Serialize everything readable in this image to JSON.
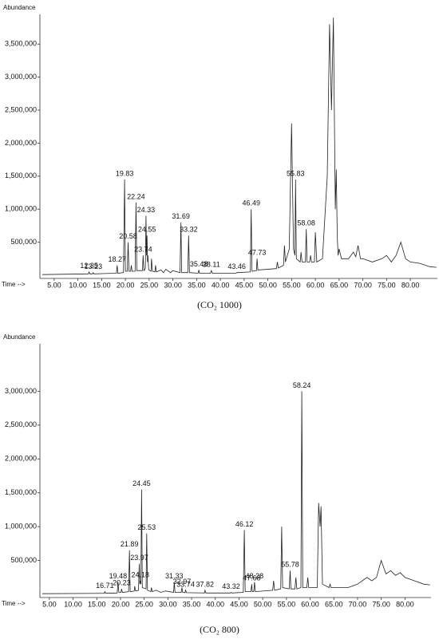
{
  "chart_data": [
    {
      "type": "line",
      "y_label": "Abundance",
      "x_label": "Time -->",
      "caption": "(CO₂ 1000)",
      "color": "#222222",
      "xlim": [
        2,
        85.7
      ],
      "ylim": [
        0,
        3950000
      ],
      "xticks": [
        {
          "value": 5,
          "label": "5.00"
        },
        {
          "value": 10,
          "label": "10.00"
        },
        {
          "value": 15,
          "label": "15.00"
        },
        {
          "value": 20,
          "label": "20.00"
        },
        {
          "value": 25,
          "label": "25.00"
        },
        {
          "value": 30,
          "label": "30.00"
        },
        {
          "value": 35,
          "label": "35.00"
        },
        {
          "value": 40,
          "label": "40.00"
        },
        {
          "value": 45,
          "label": "45.00"
        },
        {
          "value": 50,
          "label": "50.00"
        },
        {
          "value": 55,
          "label": "55.00"
        },
        {
          "value": 60,
          "label": "60.00"
        },
        {
          "value": 65,
          "label": "65.00"
        },
        {
          "value": 70,
          "label": "70.00"
        },
        {
          "value": 75,
          "label": "75.00"
        },
        {
          "value": 80,
          "label": "80.00"
        }
      ],
      "yticks": [
        {
          "value": 500000,
          "label": "500,000"
        },
        {
          "value": 1000000,
          "label": "1,000,000"
        },
        {
          "value": 1500000,
          "label": "1,500,000"
        },
        {
          "value": 2000000,
          "label": "2,000,000"
        },
        {
          "value": 2500000,
          "label": "2,500,000"
        },
        {
          "value": 3000000,
          "label": "3,000,000"
        },
        {
          "value": 3500000,
          "label": "3,500,000"
        }
      ],
      "x": [
        2.5,
        12.2,
        12.35,
        12.5,
        13.1,
        13.23,
        13.4,
        18.1,
        18.27,
        18.4,
        19.6,
        19.83,
        20.0,
        20.4,
        20.58,
        20.75,
        21.1,
        21.25,
        21.4,
        22.05,
        22.24,
        22.4,
        23.6,
        23.74,
        23.9,
        24.2,
        24.33,
        24.45,
        24.55,
        24.65,
        24.74,
        24.9,
        25.4,
        25.5,
        25.7,
        26.2,
        26.35,
        26.5,
        27.5,
        28,
        28.5,
        29.5,
        30,
        31.5,
        31.69,
        31.85,
        33.15,
        33.32,
        33.5,
        35.3,
        35.48,
        35.6,
        37.9,
        38.11,
        38.3,
        43.3,
        43.46,
        43.6,
        46.3,
        46.49,
        46.65,
        47.6,
        47.73,
        47.9,
        51.8,
        52,
        52.2,
        53.3,
        53.5,
        53.7,
        54.5,
        55.0,
        55.4,
        55.7,
        55.83,
        56,
        56.8,
        57,
        57.2,
        57.9,
        58.08,
        58.25,
        58.8,
        59,
        59.2,
        59.8,
        60,
        60.3,
        61.5,
        62.5,
        63,
        63.4,
        63.8,
        64.2,
        64.4,
        64.6,
        64.8,
        65,
        65.5,
        67,
        68,
        68.5,
        69,
        69.5,
        70,
        72,
        74,
        75,
        76,
        77,
        78,
        79,
        80,
        82,
        84,
        85.5
      ],
      "values": [
        10000,
        20000,
        50000,
        20000,
        20000,
        40000,
        20000,
        30000,
        150000,
        30000,
        40000,
        1450000,
        60000,
        60000,
        500000,
        60000,
        60000,
        150000,
        60000,
        60000,
        1100000,
        70000,
        70000,
        300000,
        70000,
        100000,
        900000,
        300000,
        600000,
        200000,
        300000,
        80000,
        60000,
        250000,
        60000,
        50000,
        150000,
        50000,
        80000,
        40000,
        90000,
        40000,
        70000,
        40000,
        800000,
        40000,
        40000,
        600000,
        40000,
        30000,
        80000,
        30000,
        30000,
        70000,
        30000,
        30000,
        40000,
        40000,
        50000,
        1000000,
        60000,
        70000,
        250000,
        80000,
        100000,
        200000,
        110000,
        150000,
        450000,
        200000,
        400000,
        2300000,
        400000,
        300000,
        1450000,
        250000,
        200000,
        350000,
        200000,
        200000,
        700000,
        200000,
        200000,
        300000,
        200000,
        200000,
        650000,
        200000,
        250000,
        1500000,
        3800000,
        2500000,
        3900000,
        1000000,
        1600000,
        600000,
        300000,
        400000,
        250000,
        250000,
        350000,
        280000,
        450000,
        250000,
        250000,
        200000,
        250000,
        300000,
        200000,
        300000,
        500000,
        250000,
        200000,
        180000,
        130000,
        120000
      ],
      "peaks": {
        "x": [
          12.35,
          13.23,
          18.27,
          19.83,
          20.58,
          22.24,
          23.74,
          24.33,
          24.55,
          31.69,
          33.32,
          35.48,
          38.11,
          43.46,
          46.49,
          47.73,
          55.83,
          58.08
        ],
        "values": [
          50000,
          40000,
          150000,
          1450000,
          500000,
          1100000,
          300000,
          900000,
          600000,
          800000,
          600000,
          80000,
          70000,
          40000,
          1000000,
          250000,
          1450000,
          700000
        ]
      }
    },
    {
      "type": "line",
      "y_label": "Abundance",
      "x_label": "Time -->",
      "caption": "(CO₂ 800)",
      "color": "#222222",
      "xlim": [
        3,
        85.5
      ],
      "ylim": [
        0,
        3700000
      ],
      "xticks": [
        {
          "value": 5,
          "label": "5.00"
        },
        {
          "value": 10,
          "label": "10.00"
        },
        {
          "value": 15,
          "label": "15.00"
        },
        {
          "value": 20,
          "label": "20.00"
        },
        {
          "value": 25,
          "label": "25.00"
        },
        {
          "value": 30,
          "label": "30.00"
        },
        {
          "value": 35,
          "label": "35.00"
        },
        {
          "value": 40,
          "label": "40.00"
        },
        {
          "value": 45,
          "label": "45.00"
        },
        {
          "value": 50,
          "label": "50.00"
        },
        {
          "value": 55,
          "label": "55.00"
        },
        {
          "value": 60,
          "label": "60.00"
        },
        {
          "value": 65,
          "label": "65.00"
        },
        {
          "value": 70,
          "label": "70.00"
        },
        {
          "value": 75,
          "label": "75.00"
        },
        {
          "value": 80,
          "label": "80.00"
        }
      ],
      "yticks": [
        {
          "value": 500000,
          "label": "500,000"
        },
        {
          "value": 1000000,
          "label": "1,000,000"
        },
        {
          "value": 1500000,
          "label": "1,500,000"
        },
        {
          "value": 2000000,
          "label": "2,000,000"
        },
        {
          "value": 2500000,
          "label": "2,500,000"
        },
        {
          "value": 3000000,
          "label": "3,000,000"
        }
      ],
      "x": [
        3.5,
        16.55,
        16.71,
        16.85,
        19.3,
        19.48,
        19.65,
        20.1,
        20.23,
        20.4,
        21.7,
        21.89,
        22.05,
        22.9,
        23.0,
        23.2,
        23.8,
        23.97,
        24.08,
        24.18,
        24.3,
        24.45,
        24.6,
        25.4,
        25.53,
        25.7,
        26.4,
        26.5,
        26.7,
        27.5,
        28.5,
        29.5,
        31.2,
        31.33,
        31.5,
        32.8,
        32.97,
        33.1,
        33.6,
        33.74,
        33.9,
        37.7,
        37.82,
        38,
        43.2,
        43.32,
        43.5,
        45.9,
        46.12,
        46.3,
        47.5,
        47.68,
        47.8,
        48.1,
        48.28,
        48.45,
        52.1,
        52.3,
        52.5,
        53.8,
        54,
        54.2,
        55.6,
        55.78,
        55.95,
        56.8,
        57,
        57.2,
        58.05,
        58.24,
        58.45,
        59.3,
        59.5,
        59.7,
        61.5,
        61.8,
        62.1,
        62.3,
        62.6,
        64,
        64.2,
        64.4,
        68,
        70,
        72,
        73,
        74,
        75,
        76,
        77,
        78,
        79,
        80,
        82,
        84,
        85.3
      ],
      "values": [
        10000,
        15000,
        40000,
        15000,
        20000,
        180000,
        30000,
        30000,
        80000,
        30000,
        40000,
        650000,
        40000,
        50000,
        120000,
        50000,
        60000,
        450000,
        150000,
        200000,
        150000,
        1550000,
        100000,
        80000,
        900000,
        60000,
        40000,
        100000,
        40000,
        60000,
        30000,
        50000,
        30000,
        180000,
        30000,
        30000,
        100000,
        30000,
        25000,
        60000,
        25000,
        20000,
        60000,
        20000,
        20000,
        30000,
        20000,
        30000,
        950000,
        40000,
        40000,
        150000,
        40000,
        40000,
        180000,
        40000,
        60000,
        200000,
        60000,
        80000,
        1000000,
        100000,
        80000,
        350000,
        80000,
        80000,
        250000,
        80000,
        100000,
        3000000,
        100000,
        100000,
        250000,
        100000,
        100000,
        1350000,
        1000000,
        1300000,
        150000,
        100000,
        150000,
        100000,
        100000,
        150000,
        250000,
        200000,
        250000,
        500000,
        300000,
        350000,
        280000,
        320000,
        250000,
        200000,
        150000,
        140000
      ],
      "peaks": {
        "x": [
          16.71,
          19.48,
          20.23,
          21.89,
          23.97,
          24.18,
          24.45,
          25.53,
          31.33,
          32.97,
          33.74,
          37.82,
          43.32,
          46.12,
          47.68,
          48.28,
          55.78,
          58.24
        ],
        "values": [
          40000,
          180000,
          80000,
          650000,
          450000,
          200000,
          1550000,
          900000,
          180000,
          100000,
          60000,
          60000,
          30000,
          950000,
          150000,
          180000,
          350000,
          3000000
        ]
      }
    }
  ]
}
